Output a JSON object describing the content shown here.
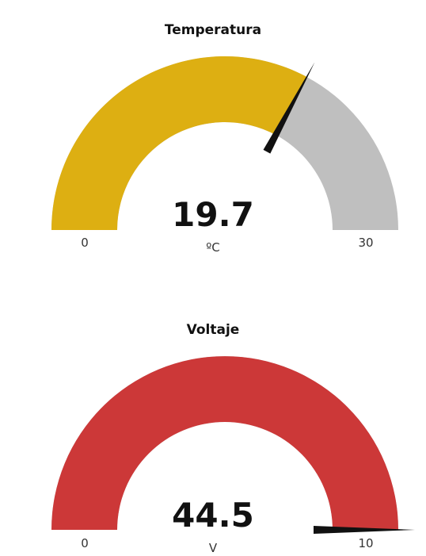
{
  "gauges": [
    {
      "title": "Temperatura",
      "value_text": "19.7",
      "value": 19.7,
      "unit": "ºC",
      "min_label": "0",
      "max_label": "30",
      "min": 0,
      "max": 30,
      "fill_color": "#DDAF12",
      "track_color": "#BFBFBF",
      "needle_color": "#111111"
    },
    {
      "title": "Voltaje",
      "value_text": "44.5",
      "value": 44.5,
      "unit": "V",
      "min_label": "0",
      "max_label": "10",
      "min": 0,
      "max": 10,
      "fill_color": "#CC3838",
      "track_color": "#BFBFBF",
      "needle_color": "#111111"
    }
  ]
}
